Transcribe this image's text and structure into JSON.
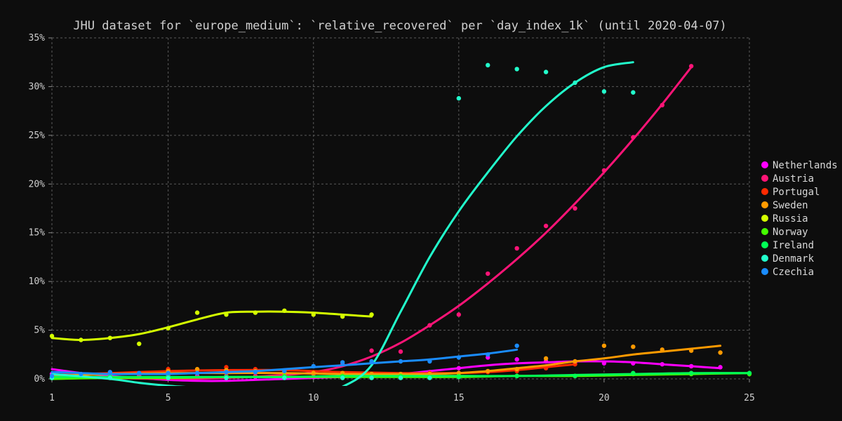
{
  "chart_data": {
    "type": "line",
    "title": "JHU dataset for `europe_medium`: `relative_recovered` per `day_index_1k` (until 2020-04-07)",
    "xlabel": "",
    "ylabel": "",
    "xlim": [
      1,
      25
    ],
    "ylim": [
      0,
      35
    ],
    "xticks": [
      1,
      5,
      10,
      15,
      20,
      25
    ],
    "yticks": [
      0,
      5,
      10,
      15,
      20,
      25,
      30,
      35
    ],
    "ytick_labels": [
      "0%",
      "5%",
      "10%",
      "15%",
      "20%",
      "25%",
      "30%",
      "35%"
    ],
    "grid": true,
    "legend_position": "right",
    "series": [
      {
        "name": "Netherlands",
        "color": "#ff00ff",
        "points": [
          [
            1,
            0.5
          ],
          [
            2,
            0.3
          ],
          [
            3,
            0.3
          ],
          [
            4,
            0.3
          ],
          [
            5,
            0.3
          ],
          [
            6,
            0.3
          ],
          [
            7,
            0.3
          ],
          [
            8,
            0.2
          ],
          [
            9,
            0.2
          ],
          [
            10,
            0.2
          ],
          [
            11,
            0.2
          ],
          [
            12,
            0.2
          ],
          [
            13,
            0.3
          ],
          [
            14,
            0.7
          ],
          [
            15,
            1.1
          ],
          [
            16,
            2.2
          ],
          [
            17,
            2.0
          ],
          [
            18,
            1.8
          ],
          [
            19,
            1.7
          ],
          [
            20,
            1.6
          ],
          [
            21,
            1.6
          ],
          [
            22,
            1.5
          ],
          [
            23,
            1.3
          ],
          [
            24,
            1.2
          ]
        ],
        "fit": [
          [
            1,
            1.0
          ],
          [
            2,
            0.6
          ],
          [
            3,
            0.3
          ],
          [
            4,
            0.1
          ],
          [
            5,
            -0.1
          ],
          [
            6,
            -0.2
          ],
          [
            7,
            -0.2
          ],
          [
            8,
            -0.1
          ],
          [
            9,
            0.0
          ],
          [
            10,
            0.1
          ],
          [
            11,
            0.2
          ],
          [
            12,
            0.3
          ],
          [
            13,
            0.5
          ],
          [
            14,
            0.8
          ],
          [
            15,
            1.1
          ],
          [
            16,
            1.4
          ],
          [
            17,
            1.6
          ],
          [
            18,
            1.7
          ],
          [
            19,
            1.8
          ],
          [
            20,
            1.8
          ],
          [
            21,
            1.7
          ],
          [
            22,
            1.5
          ],
          [
            23,
            1.3
          ],
          [
            24,
            1.1
          ]
        ]
      },
      {
        "name": "Austria",
        "color": "#ff1477",
        "points": [
          [
            1,
            0.3
          ],
          [
            2,
            0.2
          ],
          [
            3,
            0.3
          ],
          [
            4,
            0.3
          ],
          [
            5,
            0.3
          ],
          [
            6,
            0.2
          ],
          [
            7,
            0.3
          ],
          [
            8,
            0.3
          ],
          [
            9,
            0.3
          ],
          [
            10,
            0.5
          ],
          [
            11,
            1.5
          ],
          [
            12,
            2.9
          ],
          [
            13,
            2.8
          ],
          [
            14,
            5.5
          ],
          [
            15,
            6.6
          ],
          [
            16,
            10.8
          ],
          [
            17,
            13.4
          ],
          [
            18,
            15.7
          ],
          [
            19,
            17.5
          ],
          [
            20,
            21.4
          ],
          [
            21,
            24.8
          ],
          [
            22,
            28.1
          ],
          [
            23,
            32.1
          ]
        ],
        "fit": [
          [
            1,
            0.2
          ],
          [
            3,
            0.1
          ],
          [
            5,
            0.0
          ],
          [
            7,
            0.1
          ],
          [
            9,
            0.4
          ],
          [
            10,
            0.7
          ],
          [
            11,
            1.3
          ],
          [
            12,
            2.3
          ],
          [
            13,
            3.7
          ],
          [
            14,
            5.5
          ],
          [
            15,
            7.5
          ],
          [
            16,
            9.8
          ],
          [
            17,
            12.3
          ],
          [
            18,
            15.0
          ],
          [
            19,
            18.0
          ],
          [
            20,
            21.2
          ],
          [
            21,
            24.6
          ],
          [
            22,
            28.2
          ],
          [
            23,
            32.0
          ]
        ]
      },
      {
        "name": "Portugal",
        "color": "#ff2a00",
        "points": [
          [
            1,
            0.3
          ],
          [
            3,
            0.6
          ],
          [
            5,
            1.0
          ],
          [
            6,
            0.9
          ],
          [
            7,
            1.2
          ],
          [
            8,
            1.0
          ],
          [
            9,
            0.8
          ],
          [
            10,
            0.7
          ],
          [
            11,
            0.6
          ],
          [
            12,
            0.5
          ],
          [
            13,
            0.5
          ],
          [
            14,
            0.6
          ],
          [
            15,
            0.6
          ],
          [
            16,
            0.7
          ],
          [
            17,
            0.8
          ],
          [
            18,
            1.1
          ],
          [
            19,
            1.5
          ]
        ],
        "fit": [
          [
            1,
            0.4
          ],
          [
            3,
            0.6
          ],
          [
            5,
            0.8
          ],
          [
            7,
            0.9
          ],
          [
            9,
            0.9
          ],
          [
            11,
            0.7
          ],
          [
            13,
            0.6
          ],
          [
            15,
            0.6
          ],
          [
            16,
            0.7
          ],
          [
            17,
            0.9
          ],
          [
            18,
            1.2
          ],
          [
            19,
            1.5
          ]
        ]
      },
      {
        "name": "Sweden",
        "color": "#ff9a00",
        "points": [
          [
            1,
            0.2
          ],
          [
            3,
            0.3
          ],
          [
            5,
            0.8
          ],
          [
            6,
            1.0
          ],
          [
            7,
            0.9
          ],
          [
            8,
            0.8
          ],
          [
            9,
            0.7
          ],
          [
            10,
            0.6
          ],
          [
            11,
            0.6
          ],
          [
            12,
            0.5
          ],
          [
            13,
            0.5
          ],
          [
            14,
            0.5
          ],
          [
            15,
            0.6
          ],
          [
            16,
            0.8
          ],
          [
            17,
            1.0
          ],
          [
            18,
            2.1
          ],
          [
            19,
            1.8
          ],
          [
            20,
            3.4
          ],
          [
            21,
            3.3
          ],
          [
            22,
            3.0
          ],
          [
            23,
            2.9
          ],
          [
            24,
            2.7
          ]
        ],
        "fit": [
          [
            1,
            0.3
          ],
          [
            3,
            0.5
          ],
          [
            5,
            0.6
          ],
          [
            7,
            0.6
          ],
          [
            9,
            0.6
          ],
          [
            11,
            0.5
          ],
          [
            13,
            0.5
          ],
          [
            14,
            0.5
          ],
          [
            15,
            0.6
          ],
          [
            16,
            0.8
          ],
          [
            17,
            1.1
          ],
          [
            18,
            1.4
          ],
          [
            19,
            1.8
          ],
          [
            20,
            2.1
          ],
          [
            21,
            2.5
          ],
          [
            22,
            2.8
          ],
          [
            23,
            3.1
          ],
          [
            24,
            3.4
          ]
        ]
      },
      {
        "name": "Russia",
        "color": "#d4ff00",
        "points": [
          [
            1,
            4.4
          ],
          [
            2,
            4.0
          ],
          [
            3,
            4.2
          ],
          [
            4,
            3.6
          ],
          [
            5,
            5.2
          ],
          [
            6,
            6.8
          ],
          [
            7,
            6.6
          ],
          [
            8,
            6.8
          ],
          [
            9,
            7.0
          ],
          [
            10,
            6.6
          ],
          [
            11,
            6.4
          ],
          [
            12,
            6.6
          ]
        ],
        "fit": [
          [
            1,
            4.2
          ],
          [
            2,
            4.0
          ],
          [
            3,
            4.2
          ],
          [
            4,
            4.6
          ],
          [
            5,
            5.3
          ],
          [
            6,
            6.1
          ],
          [
            7,
            6.8
          ],
          [
            8,
            6.9
          ],
          [
            9,
            6.9
          ],
          [
            10,
            6.8
          ],
          [
            11,
            6.6
          ],
          [
            12,
            6.4
          ]
        ]
      },
      {
        "name": "Norway",
        "color": "#44ff00",
        "points": [
          [
            1,
            0.1
          ],
          [
            3,
            0.2
          ],
          [
            5,
            0.2
          ],
          [
            7,
            0.2
          ],
          [
            9,
            0.3
          ],
          [
            11,
            0.3
          ],
          [
            13,
            0.3
          ],
          [
            15,
            0.3
          ],
          [
            17,
            0.3
          ],
          [
            19,
            0.3
          ],
          [
            21,
            0.5
          ],
          [
            23,
            0.5
          ],
          [
            25,
            0.5
          ]
        ],
        "fit": [
          [
            1,
            0.0
          ],
          [
            3,
            0.1
          ],
          [
            5,
            0.1
          ],
          [
            7,
            0.2
          ],
          [
            9,
            0.2
          ],
          [
            11,
            0.2
          ],
          [
            13,
            0.2
          ],
          [
            15,
            0.2
          ],
          [
            17,
            0.3
          ],
          [
            19,
            0.3
          ],
          [
            21,
            0.4
          ],
          [
            23,
            0.5
          ],
          [
            25,
            0.6
          ]
        ]
      },
      {
        "name": "Ireland",
        "color": "#00ff55",
        "points": [
          [
            1,
            0.1
          ],
          [
            3,
            0.2
          ],
          [
            5,
            0.2
          ],
          [
            7,
            0.2
          ],
          [
            9,
            0.2
          ],
          [
            11,
            0.2
          ],
          [
            13,
            0.2
          ],
          [
            15,
            0.2
          ],
          [
            17,
            0.3
          ],
          [
            19,
            0.3
          ],
          [
            21,
            0.6
          ],
          [
            23,
            0.6
          ],
          [
            25,
            0.6
          ]
        ],
        "fit": [
          [
            1,
            0.2
          ],
          [
            3,
            0.2
          ],
          [
            5,
            0.2
          ],
          [
            7,
            0.2
          ],
          [
            9,
            0.2
          ],
          [
            11,
            0.3
          ],
          [
            13,
            0.3
          ],
          [
            15,
            0.3
          ],
          [
            17,
            0.3
          ],
          [
            19,
            0.4
          ],
          [
            21,
            0.5
          ],
          [
            23,
            0.6
          ],
          [
            25,
            0.6
          ]
        ]
      },
      {
        "name": "Denmark",
        "color": "#22ffcc",
        "points": [
          [
            1,
            0.1
          ],
          [
            3,
            0.1
          ],
          [
            5,
            0.1
          ],
          [
            7,
            0.1
          ],
          [
            9,
            0.1
          ],
          [
            11,
            0.1
          ],
          [
            12,
            0.1
          ],
          [
            13,
            0.1
          ],
          [
            14,
            0.1
          ],
          [
            15,
            28.8
          ],
          [
            16,
            32.2
          ],
          [
            17,
            31.8
          ],
          [
            18,
            31.5
          ],
          [
            19,
            30.4
          ],
          [
            20,
            29.5
          ],
          [
            21,
            29.4
          ]
        ],
        "fit": [
          [
            1,
            0.5
          ],
          [
            3,
            0.0
          ],
          [
            4,
            -0.4
          ],
          [
            5,
            -0.7
          ],
          [
            6,
            -0.9
          ],
          [
            7,
            -1.1
          ],
          [
            8,
            -1.3
          ],
          [
            9,
            -1.5
          ],
          [
            10,
            -1.5
          ],
          [
            11,
            -0.8
          ],
          [
            12,
            1.4
          ],
          [
            13,
            6.9
          ],
          [
            14,
            12.5
          ],
          [
            15,
            17.2
          ],
          [
            16,
            21.2
          ],
          [
            17,
            24.9
          ],
          [
            18,
            28.0
          ],
          [
            19,
            30.4
          ],
          [
            20,
            32.0
          ],
          [
            21,
            32.5
          ]
        ]
      },
      {
        "name": "Czechia",
        "color": "#1a8cff",
        "points": [
          [
            1,
            0.3
          ],
          [
            2,
            0.5
          ],
          [
            3,
            0.7
          ],
          [
            4,
            0.6
          ],
          [
            5,
            0.6
          ],
          [
            6,
            0.6
          ],
          [
            7,
            0.7
          ],
          [
            8,
            0.7
          ],
          [
            9,
            0.8
          ],
          [
            10,
            1.3
          ],
          [
            11,
            1.7
          ],
          [
            12,
            1.8
          ],
          [
            13,
            1.8
          ],
          [
            14,
            1.8
          ],
          [
            15,
            2.2
          ],
          [
            16,
            2.5
          ],
          [
            17,
            3.4
          ]
        ],
        "fit": [
          [
            1,
            0.7
          ],
          [
            2,
            0.6
          ],
          [
            3,
            0.5
          ],
          [
            4,
            0.5
          ],
          [
            5,
            0.5
          ],
          [
            6,
            0.6
          ],
          [
            7,
            0.7
          ],
          [
            8,
            0.8
          ],
          [
            9,
            1.0
          ],
          [
            10,
            1.2
          ],
          [
            11,
            1.4
          ],
          [
            12,
            1.6
          ],
          [
            13,
            1.8
          ],
          [
            14,
            2.0
          ],
          [
            15,
            2.3
          ],
          [
            16,
            2.6
          ],
          [
            17,
            3.0
          ]
        ]
      }
    ]
  }
}
